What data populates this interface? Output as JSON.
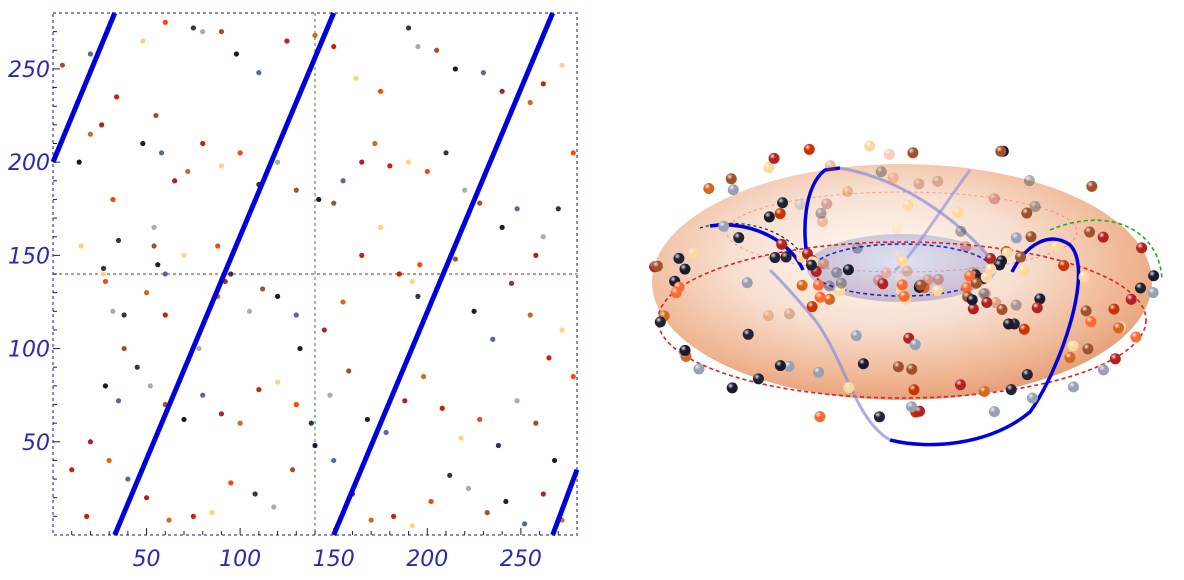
{
  "chart_data": [
    {
      "type": "scatter",
      "xlim": [
        0,
        280
      ],
      "ylim": [
        0,
        280
      ],
      "x_ticks": [
        50,
        100,
        150,
        200,
        250
      ],
      "y_ticks": [
        50,
        100,
        150,
        200,
        250
      ],
      "guide_lines": {
        "vertical_x": 140,
        "horizontal_y": 140
      },
      "colors": {
        "line": "#0000dd",
        "frame": "#8888cc",
        "v_guide": "#66bb66",
        "h_guide": "#e06060"
      },
      "line_segments": [
        {
          "x": [
            0,
            33
          ],
          "y": [
            200,
            280
          ]
        },
        {
          "x": [
            33,
            150
          ],
          "y": [
            0,
            280
          ]
        },
        {
          "x": [
            150,
            267
          ],
          "y": [
            0,
            280
          ]
        },
        {
          "x": [
            267,
            280
          ],
          "y": [
            0,
            35
          ]
        }
      ],
      "point_palette": [
        "#1a1a2e",
        "#d2691e",
        "#ff4500",
        "#a0522d",
        "#b22222",
        "#ffd27f",
        "#a9a9b9",
        "#5566aa",
        "#cc2200",
        "#333344"
      ],
      "points": [
        [
          5,
          252
        ],
        [
          14,
          200
        ],
        [
          20,
          258
        ],
        [
          26,
          220
        ],
        [
          20,
          215
        ],
        [
          34,
          235
        ],
        [
          15,
          155
        ],
        [
          32,
          180
        ],
        [
          35,
          158
        ],
        [
          32,
          120
        ],
        [
          38,
          100
        ],
        [
          28,
          80
        ],
        [
          35,
          72
        ],
        [
          20,
          50
        ],
        [
          30,
          40
        ],
        [
          10,
          35
        ],
        [
          48,
          265
        ],
        [
          60,
          275
        ],
        [
          75,
          272
        ],
        [
          80,
          270
        ],
        [
          90,
          270
        ],
        [
          98,
          258
        ],
        [
          110,
          248
        ],
        [
          125,
          265
        ],
        [
          140,
          268
        ],
        [
          150,
          262
        ],
        [
          162,
          245
        ],
        [
          175,
          238
        ],
        [
          190,
          272
        ],
        [
          195,
          262
        ],
        [
          205,
          260
        ],
        [
          215,
          250
        ],
        [
          230,
          248
        ],
        [
          240,
          238
        ],
        [
          255,
          232
        ],
        [
          262,
          242
        ],
        [
          272,
          252
        ],
        [
          278,
          205
        ],
        [
          270,
          175
        ],
        [
          262,
          160
        ],
        [
          55,
          225
        ],
        [
          48,
          210
        ],
        [
          58,
          205
        ],
        [
          65,
          190
        ],
        [
          72,
          195
        ],
        [
          80,
          210
        ],
        [
          90,
          198
        ],
        [
          100,
          205
        ],
        [
          110,
          188
        ],
        [
          120,
          200
        ],
        [
          130,
          185
        ],
        [
          142,
          180
        ],
        [
          155,
          190
        ],
        [
          165,
          200
        ],
        [
          172,
          210
        ],
        [
          180,
          198
        ],
        [
          190,
          200
        ],
        [
          200,
          195
        ],
        [
          210,
          205
        ],
        [
          220,
          185
        ],
        [
          228,
          178
        ],
        [
          240,
          165
        ],
        [
          248,
          175
        ],
        [
          258,
          150
        ],
        [
          50,
          130
        ],
        [
          60,
          118
        ],
        [
          70,
          150
        ],
        [
          88,
          155
        ],
        [
          95,
          140
        ],
        [
          105,
          120
        ],
        [
          112,
          132
        ],
        [
          120,
          128
        ],
        [
          130,
          118
        ],
        [
          145,
          110
        ],
        [
          155,
          125
        ],
        [
          165,
          150
        ],
        [
          175,
          165
        ],
        [
          185,
          140
        ],
        [
          195,
          128
        ],
        [
          205,
          132
        ],
        [
          215,
          148
        ],
        [
          225,
          120
        ],
        [
          235,
          105
        ],
        [
          245,
          135
        ],
        [
          255,
          118
        ],
        [
          265,
          95
        ],
        [
          272,
          110
        ],
        [
          278,
          85
        ],
        [
          45,
          90
        ],
        [
          52,
          80
        ],
        [
          60,
          70
        ],
        [
          70,
          62
        ],
        [
          80,
          75
        ],
        [
          90,
          65
        ],
        [
          100,
          60
        ],
        [
          110,
          78
        ],
        [
          120,
          82
        ],
        [
          130,
          70
        ],
        [
          138,
          60
        ],
        [
          148,
          75
        ],
        [
          158,
          88
        ],
        [
          168,
          62
        ],
        [
          178,
          55
        ],
        [
          188,
          72
        ],
        [
          198,
          85
        ],
        [
          208,
          68
        ],
        [
          218,
          52
        ],
        [
          228,
          62
        ],
        [
          238,
          48
        ],
        [
          248,
          72
        ],
        [
          258,
          60
        ],
        [
          268,
          40
        ],
        [
          40,
          30
        ],
        [
          50,
          20
        ],
        [
          62,
          8
        ],
        [
          75,
          10
        ],
        [
          85,
          12
        ],
        [
          95,
          28
        ],
        [
          108,
          22
        ],
        [
          118,
          15
        ],
        [
          128,
          35
        ],
        [
          140,
          48
        ],
        [
          150,
          40
        ],
        [
          160,
          22
        ],
        [
          170,
          8
        ],
        [
          182,
          10
        ],
        [
          192,
          5
        ],
        [
          202,
          18
        ],
        [
          212,
          32
        ],
        [
          222,
          25
        ],
        [
          232,
          12
        ],
        [
          242,
          18
        ],
        [
          252,
          6
        ],
        [
          262,
          22
        ],
        [
          272,
          8
        ],
        [
          18,
          10
        ],
        [
          27,
          140
        ],
        [
          28,
          136
        ],
        [
          27,
          143
        ],
        [
          54,
          165
        ],
        [
          54,
          155
        ],
        [
          56,
          145
        ],
        [
          60,
          140
        ],
        [
          92,
          136
        ],
        [
          88,
          128
        ],
        [
          185,
          140
        ],
        [
          192,
          136
        ],
        [
          196,
          145
        ],
        [
          38,
          118
        ],
        [
          78,
          100
        ],
        [
          150,
          178
        ],
        [
          132,
          100
        ]
      ]
    },
    {
      "type": "other",
      "colors": {
        "curve": "#0000dd",
        "curve_faint": "#8a8ad8",
        "red_circle": "#dd2222",
        "green_circle": "#22aa22",
        "blue_circle": "#2222dd"
      }
    }
  ]
}
